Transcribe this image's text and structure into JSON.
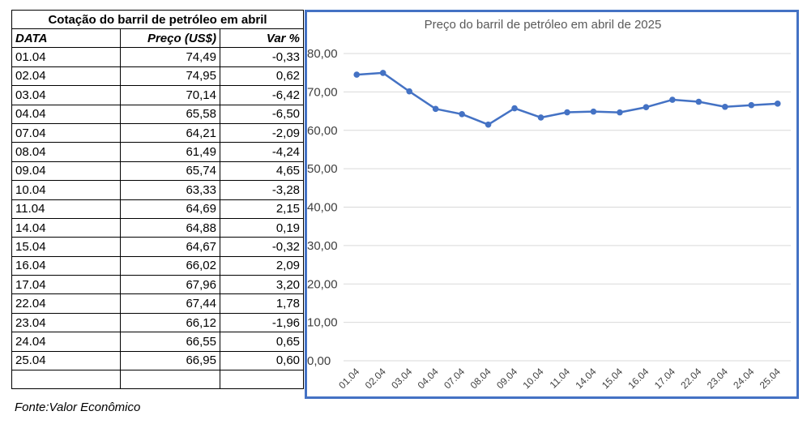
{
  "table": {
    "title": "Cotação do barril de petróleo em abril",
    "headers": [
      "DATA",
      "Preço (US$)",
      "Var %"
    ],
    "rows": [
      [
        "01.04",
        "74,49",
        "-0,33"
      ],
      [
        "02.04",
        "74,95",
        "0,62"
      ],
      [
        "03.04",
        "70,14",
        "-6,42"
      ],
      [
        "04.04",
        "65,58",
        "-6,50"
      ],
      [
        "07.04",
        "64,21",
        "-2,09"
      ],
      [
        "08.04",
        "61,49",
        "-4,24"
      ],
      [
        "09.04",
        "65,74",
        "4,65"
      ],
      [
        "10.04",
        "63,33",
        "-3,28"
      ],
      [
        "11.04",
        "64,69",
        "2,15"
      ],
      [
        "14.04",
        "64,88",
        "0,19"
      ],
      [
        "15.04",
        "64,67",
        "-0,32"
      ],
      [
        "16.04",
        "66,02",
        "2,09"
      ],
      [
        "17.04",
        "67,96",
        "3,20"
      ],
      [
        "22.04",
        "67,44",
        "1,78"
      ],
      [
        "23.04",
        "66,12",
        "-1,96"
      ],
      [
        "24.04",
        "66,55",
        "0,65"
      ],
      [
        "25.04",
        "66,95",
        "0,60"
      ]
    ]
  },
  "source": "Fonte:Valor Econômico",
  "chart_data": {
    "type": "line",
    "title": "Preço do barril de petróleo  em abril de 2025",
    "xlabel": "",
    "ylabel": "",
    "categories": [
      "01.04",
      "02.04",
      "03.04",
      "04.04",
      "07.04",
      "08.04",
      "09.04",
      "10.04",
      "11.04",
      "14.04",
      "15.04",
      "16.04",
      "17.04",
      "22.04",
      "23.04",
      "24.04",
      "25.04"
    ],
    "series": [
      {
        "values": [
          74.49,
          74.95,
          70.14,
          65.58,
          64.21,
          61.49,
          65.74,
          63.33,
          64.69,
          64.88,
          64.67,
          66.02,
          67.96,
          67.44,
          66.12,
          66.55,
          66.95
        ]
      }
    ],
    "ylim": [
      0,
      80
    ],
    "yticks": [
      0,
      10,
      20,
      30,
      40,
      50,
      60,
      70,
      80
    ],
    "ytick_labels": [
      "0,00",
      "10,00",
      "20,00",
      "30,00",
      "40,00",
      "50,00",
      "60,00",
      "70,00",
      "80,00"
    ],
    "grid": true,
    "legend": "none",
    "line_color": "#4472c4"
  }
}
